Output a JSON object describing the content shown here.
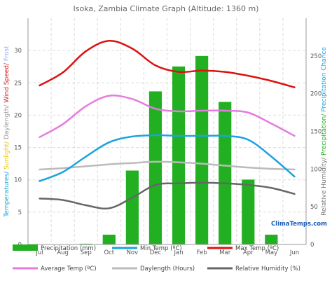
{
  "chart_data": {
    "type": "bar+line",
    "title": "Isoka, Zambia Climate Graph (Altitude: 1360 m)",
    "categories": [
      "Jul",
      "Aug",
      "Sep",
      "Oct",
      "Nov",
      "Dec",
      "Jan",
      "Feb",
      "Mar",
      "Apr",
      "May",
      "Jun"
    ],
    "left_axis": {
      "label_parts": [
        {
          "text": "Temperatures/",
          "color": "#1aa6d9"
        },
        {
          "text": " Sunlight/",
          "color": "#e8c400"
        },
        {
          "text": " Daylength/",
          "color": "#999999"
        },
        {
          "text": " Wind Speed/",
          "color": "#d42020"
        },
        {
          "text": " Frost",
          "color": "#88aaff"
        }
      ],
      "ylim": [
        0,
        35
      ],
      "ticks": [
        0,
        5,
        10,
        15,
        20,
        25,
        30
      ]
    },
    "right_axis": {
      "label_parts": [
        {
          "text": "Relative Humidity/",
          "color": "#777777"
        },
        {
          "text": " Precipitation/",
          "color": "#22aa22"
        },
        {
          "text": " Precipitation Chance",
          "color": "#1aa6d9"
        }
      ],
      "ylim": [
        0,
        300
      ],
      "ticks": [
        0,
        50,
        100,
        150,
        200,
        250
      ]
    },
    "series": [
      {
        "name": "Precipitation (mm)",
        "kind": "bar",
        "axis": "right",
        "color": "#22b022",
        "values": [
          0,
          0,
          1,
          13,
          98,
          203,
          236,
          250,
          189,
          86,
          13,
          0
        ]
      },
      {
        "name": "Min Temp (ºC)",
        "kind": "line",
        "axis": "left",
        "color": "#1ba3dd",
        "values": [
          9.8,
          11.2,
          13.6,
          15.8,
          16.7,
          16.9,
          16.8,
          16.8,
          16.8,
          16.2,
          13.6,
          10.5
        ]
      },
      {
        "name": "Max Temp (ºC)",
        "kind": "line",
        "axis": "left",
        "color": "#dd1111",
        "values": [
          24.6,
          26.6,
          29.9,
          31.5,
          30.3,
          27.7,
          26.7,
          26.9,
          26.7,
          26.1,
          25.3,
          24.3
        ]
      },
      {
        "name": "Average Temp (ºC)",
        "kind": "line",
        "axis": "left",
        "color": "#e57be0",
        "values": [
          16.6,
          18.6,
          21.4,
          23.0,
          22.5,
          21.0,
          20.6,
          20.7,
          20.7,
          20.4,
          18.7,
          16.8
        ]
      },
      {
        "name": "Daylength (Hours)",
        "kind": "line",
        "axis": "left",
        "color": "#bbbbbb",
        "values": [
          11.6,
          11.8,
          12.1,
          12.4,
          12.6,
          12.8,
          12.7,
          12.5,
          12.2,
          11.9,
          11.7,
          11.6
        ]
      },
      {
        "name": "Relative Humidity (%)",
        "kind": "line",
        "axis": "right",
        "color": "#666666",
        "values": [
          61,
          59,
          52,
          48,
          62,
          79,
          81,
          82,
          81,
          79,
          75,
          67
        ]
      }
    ],
    "grid": true,
    "legend": "bottom"
  },
  "watermark": "ClimaTemps.com",
  "colors": {
    "watermark": "#1a5fb4",
    "grid": "#dcdcdc",
    "axis": "#999999"
  }
}
